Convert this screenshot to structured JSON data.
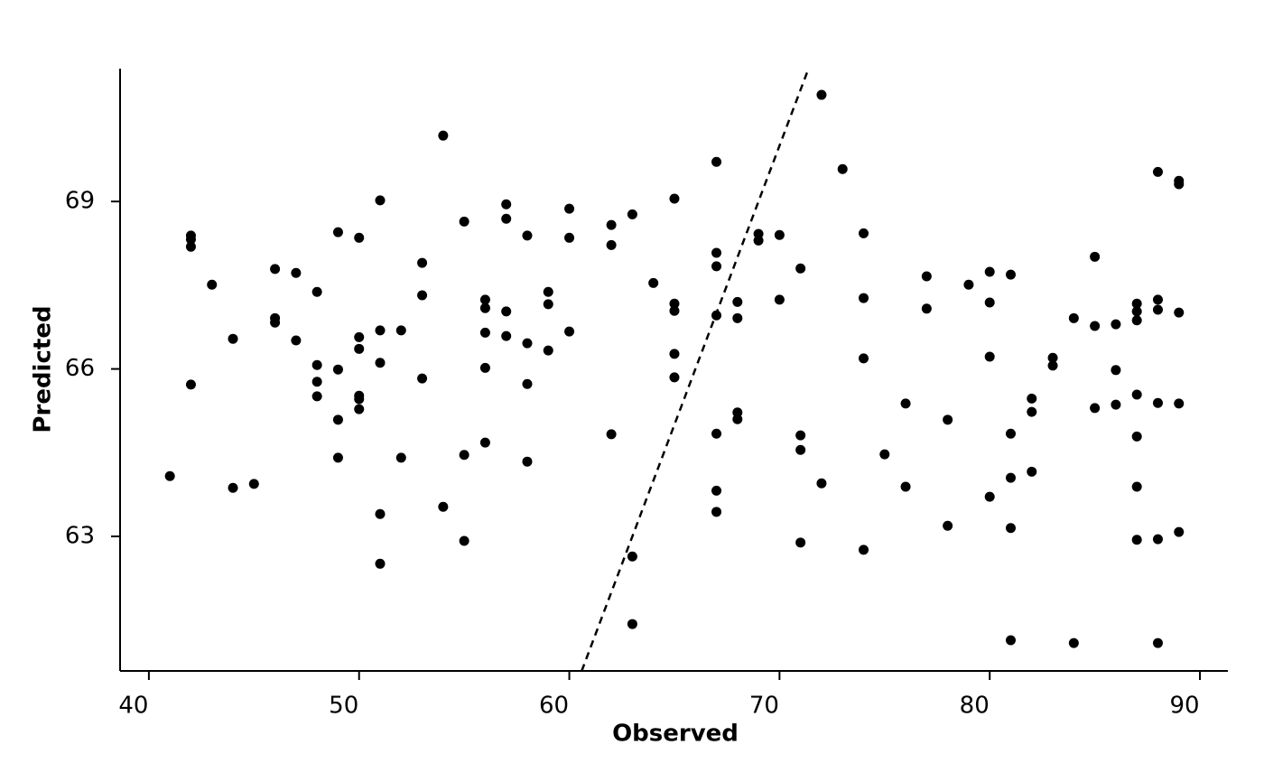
{
  "chart_data": {
    "type": "scatter",
    "x_label": "Observed",
    "y_label": "Predicted",
    "xlim": [
      38.63,
      91.33
    ],
    "ylim": [
      60.59,
      71.38
    ],
    "xticks": [
      40,
      50,
      60,
      70,
      80,
      90
    ],
    "yticks": [
      63,
      66,
      69
    ],
    "identity_line": true,
    "color": "#000000",
    "x": [
      41,
      42,
      42,
      42,
      42,
      43,
      44,
      44,
      45,
      46,
      46,
      46,
      47,
      47,
      48,
      48,
      48,
      48,
      49,
      49,
      49,
      49,
      50,
      50,
      50,
      50,
      50,
      50,
      51,
      51,
      51,
      51,
      51,
      52,
      52,
      53,
      53,
      53,
      54,
      54,
      55,
      55,
      55,
      56,
      56,
      56,
      56,
      56,
      57,
      57,
      57,
      57,
      58,
      58,
      58,
      58,
      59,
      59,
      59,
      60,
      60,
      60,
      62,
      62,
      62,
      63,
      63,
      63,
      64,
      65,
      65,
      65,
      65,
      65,
      67,
      67,
      67,
      67,
      67,
      67,
      67,
      68,
      68,
      68,
      68,
      69,
      69,
      70,
      70,
      71,
      71,
      71,
      71,
      72,
      72,
      73,
      74,
      74,
      74,
      74,
      75,
      76,
      76,
      77,
      77,
      78,
      78,
      79,
      80,
      80,
      80,
      80,
      81,
      81,
      81,
      81,
      81,
      82,
      82,
      82,
      83,
      83,
      84,
      84,
      85,
      85,
      85,
      86,
      86,
      86,
      87,
      87,
      87,
      87,
      87,
      87,
      87,
      88,
      88,
      88,
      88,
      88,
      88,
      89,
      89,
      89,
      89,
      89
    ],
    "y": [
      64.08,
      68.39,
      68.32,
      68.19,
      65.72,
      67.51,
      66.54,
      63.87,
      63.94,
      67.79,
      66.91,
      66.83,
      67.72,
      66.51,
      67.38,
      66.07,
      65.77,
      65.51,
      68.45,
      65.99,
      65.09,
      64.41,
      68.35,
      66.57,
      66.36,
      65.52,
      65.46,
      65.28,
      69.02,
      66.69,
      66.11,
      63.4,
      62.51,
      66.69,
      64.41,
      67.9,
      67.32,
      65.83,
      70.18,
      63.53,
      68.64,
      64.46,
      62.92,
      67.24,
      67.09,
      66.65,
      66.02,
      64.68,
      68.95,
      68.69,
      67.03,
      66.59,
      68.39,
      66.46,
      65.73,
      64.34,
      67.38,
      67.16,
      66.33,
      68.87,
      68.35,
      66.67,
      68.58,
      68.22,
      64.83,
      68.77,
      62.64,
      61.43,
      67.54,
      69.05,
      67.17,
      67.04,
      66.27,
      65.85,
      69.71,
      68.08,
      67.84,
      66.96,
      64.84,
      63.82,
      63.44,
      67.2,
      66.91,
      65.22,
      65.1,
      68.42,
      68.3,
      68.4,
      67.24,
      67.8,
      64.81,
      64.55,
      62.89,
      70.91,
      63.95,
      69.58,
      68.43,
      67.27,
      66.19,
      62.76,
      64.47,
      65.38,
      63.89,
      67.66,
      67.08,
      65.09,
      63.19,
      67.51,
      67.74,
      67.19,
      66.22,
      63.71,
      67.69,
      64.84,
      64.05,
      63.15,
      61.14,
      65.47,
      65.23,
      64.16,
      66.2,
      66.06,
      66.91,
      61.09,
      68.01,
      66.77,
      65.3,
      66.8,
      65.98,
      65.36,
      67.17,
      67.03,
      66.87,
      65.54,
      64.79,
      63.89,
      62.94,
      69.53,
      67.24,
      67.06,
      65.39,
      62.95,
      61.09,
      69.37,
      69.31,
      67.01,
      65.38,
      63.08
    ]
  }
}
